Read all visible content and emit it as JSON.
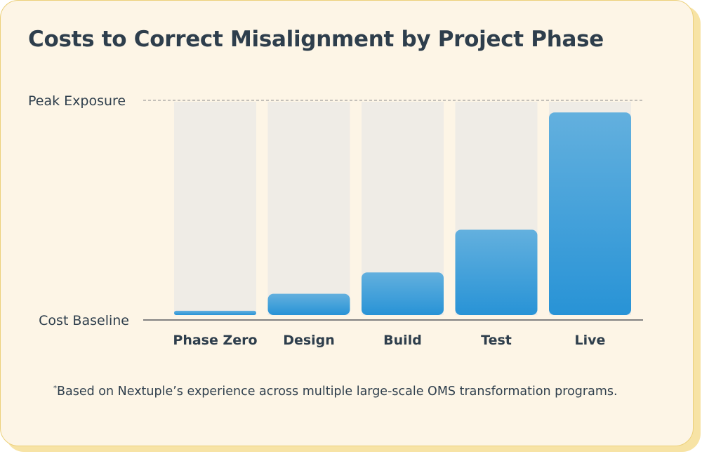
{
  "chart_data": {
    "type": "bar",
    "title": "Costs to Correct Misalignment by Project Phase",
    "categories": [
      "Phase Zero",
      "Design",
      "Build",
      "Test",
      "Live"
    ],
    "values": [
      2,
      10,
      20,
      40,
      95
    ],
    "ylim": [
      0,
      100
    ],
    "y_axis_top_label": "Peak Exposure",
    "y_axis_bottom_label": "Cost Baseline",
    "grid": false,
    "legend": "none"
  },
  "footnote": {
    "marker": "*",
    "text": "Based on Nextuple’s experience across multiple large-scale OMS transformation programs."
  },
  "colors": {
    "card_background": "#fdf5e6",
    "card_border": "#ecd07a",
    "track": "#efece6",
    "bar_top": "#63b0de",
    "bar_bottom": "#2893d6",
    "text": "#2e3e4c"
  }
}
